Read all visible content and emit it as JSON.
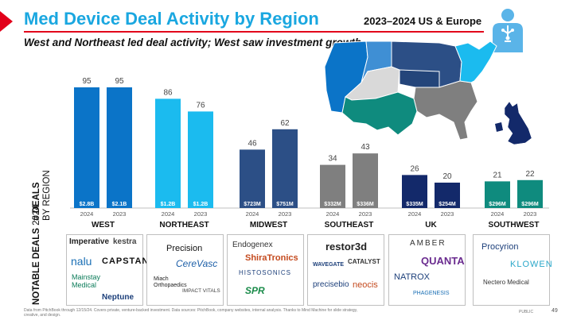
{
  "title": "Med Device Deal Activity by Region",
  "top_right": "2023–2024 US & Europe",
  "subtitle": "West and Northeast led deal activity; West saw investment growth",
  "y_label_bold": "# DEALS",
  "y_label_regular": "BY REGION",
  "deals_label_bold": "NOTABLE DEALS",
  "deals_label_regular": "2024",
  "chart_data": {
    "type": "bar",
    "categories": [
      "WEST",
      "NORTHEAST",
      "MIDWEST",
      "SOUTHEAST",
      "UK",
      "SOUTHWEST"
    ],
    "series": [
      {
        "year": "2024",
        "values": [
          95,
          86,
          46,
          34,
          26,
          21
        ],
        "investment": [
          "$2.8B",
          "$1.2B",
          "$723M",
          "$332M",
          "$335M",
          "$296M"
        ]
      },
      {
        "year": "2023",
        "values": [
          95,
          76,
          62,
          43,
          20,
          22
        ],
        "investment": [
          "$2.1B",
          "$1.2B",
          "$751M",
          "$336M",
          "$254M",
          "$296M"
        ]
      }
    ],
    "colors": [
      "#0b74c8",
      "#1bbbef",
      "#2c4f86",
      "#7f7f7f",
      "#13296a",
      "#0f8b7e"
    ],
    "ylim": [
      0,
      100
    ]
  },
  "notable_deals": [
    [
      "Imperative",
      "kestra",
      "nalu",
      "CAPSTAN",
      "Mainstay Medical",
      "Neptune"
    ],
    [
      "Precision",
      "CereVasc",
      "Miach Orthopaedics",
      "IMPACT VITALS"
    ],
    [
      "Endogenex",
      "ShiraTronics",
      "HISTOSONICS",
      "SPR"
    ],
    [
      "restor3d",
      "WAVEGATE",
      "CATALYST",
      "precisebio",
      "neocis"
    ],
    [
      "AMBER",
      "QUANTA",
      "NATROX",
      "PHAGENESIS"
    ],
    [
      "Procyrion",
      "KLOWEN",
      "Nectero Medical"
    ]
  ],
  "footer": "Data from PitchBook through 12/15/24. Covers private, venture-backed investment. Data sources: PitchBook, company websites, internal analysis. Thanks to Mind Machine for slide strategy, creative, and design.",
  "public": "PUBLIC",
  "page_number": "49"
}
